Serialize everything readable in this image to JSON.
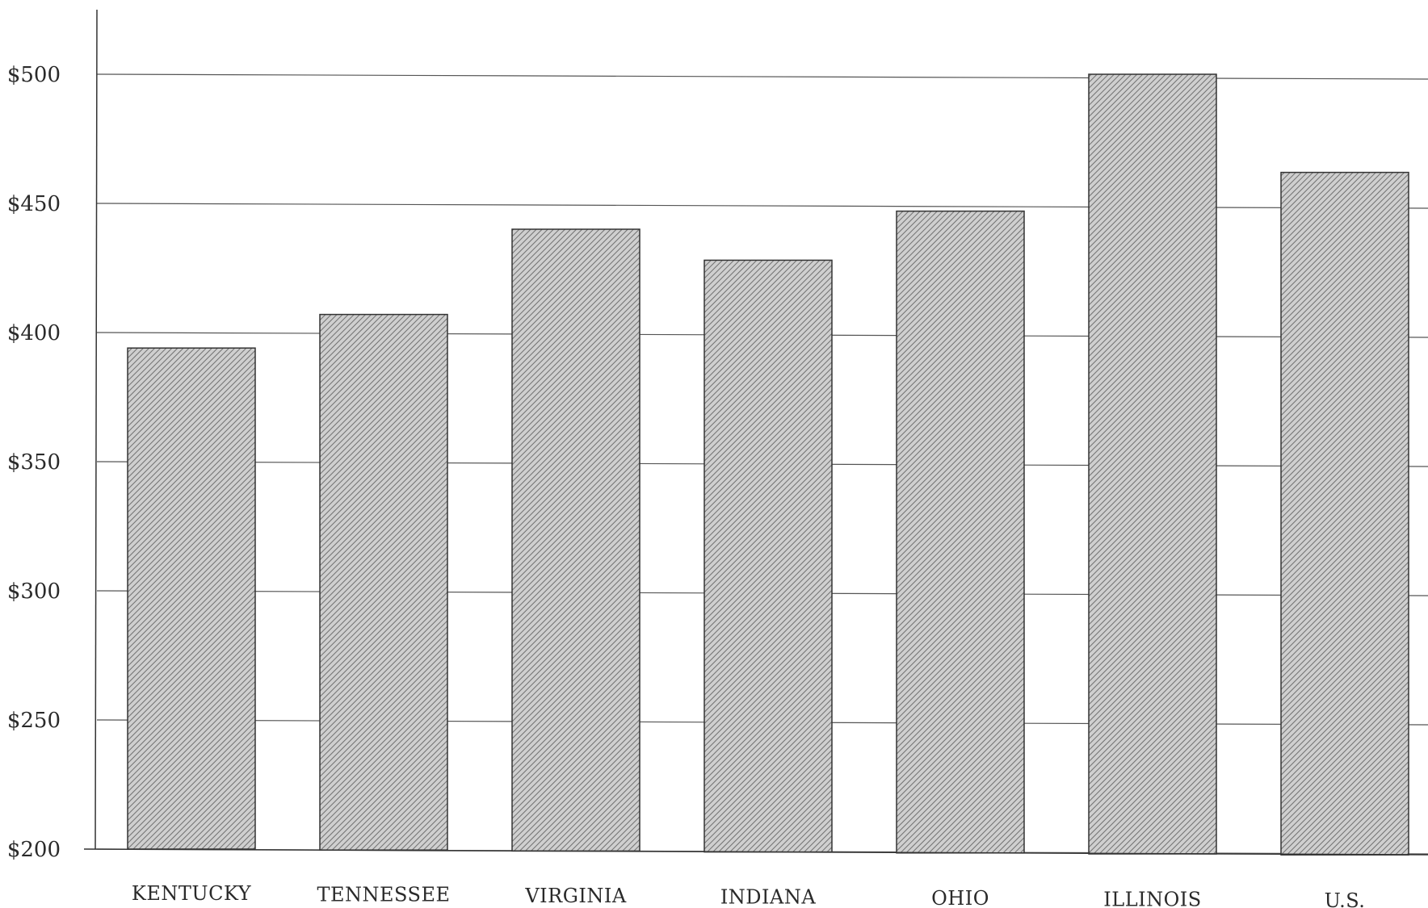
{
  "chart_data": {
    "type": "bar",
    "categories": [
      "KENTUCKY",
      "TENNESSEE",
      "VIRGINIA",
      "INDIANA",
      "OHIO",
      "ILLINOIS",
      "U.S."
    ],
    "values": [
      394,
      407,
      440,
      428,
      447,
      500,
      462
    ],
    "yticks": [
      200,
      250,
      300,
      350,
      400,
      450,
      500
    ],
    "ytick_labels": [
      "$200",
      "$250",
      "$300",
      "$350",
      "$400",
      "$450",
      "$500"
    ],
    "ylim": [
      200,
      520
    ],
    "grid": true,
    "title": "",
    "xlabel": "",
    "ylabel": "",
    "colors": {
      "bar_fill": "#c8c8c8",
      "hatch": "#6a6a6a",
      "line": "#333333"
    }
  }
}
